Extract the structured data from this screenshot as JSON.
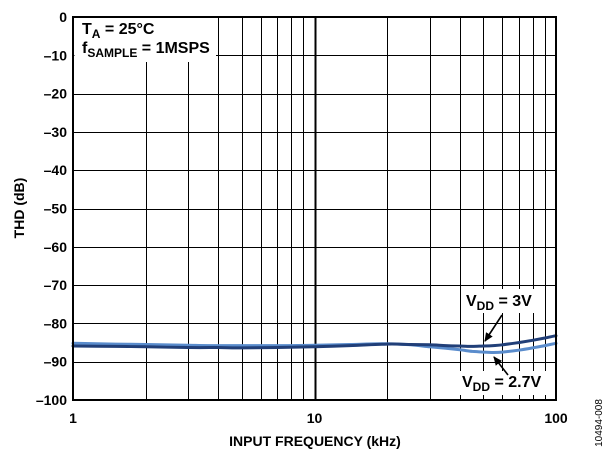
{
  "chart_data": {
    "type": "line",
    "xlabel": "INPUT FREQUENCY (kHz)",
    "ylabel": "THD (dB)",
    "xscale": "log",
    "xlim": [
      1,
      100
    ],
    "ylim": [
      -100,
      0
    ],
    "xticks": [
      1,
      10,
      100
    ],
    "xtick_labels": [
      "1",
      "10",
      "100"
    ],
    "yticks": [
      0,
      -10,
      -20,
      -30,
      -40,
      -50,
      -60,
      -70,
      -80,
      -90,
      -100
    ],
    "ytick_labels": [
      "0",
      "–10",
      "–20",
      "–30",
      "–40",
      "–50",
      "–60",
      "–70",
      "–80",
      "–90",
      "–100"
    ],
    "grid": true,
    "annotations": [
      {
        "symbol": "T",
        "subscript": "A",
        "text": " = 25°C"
      },
      {
        "symbol": "f",
        "subscript": "SAMPLE",
        "text": " = 1MSPS"
      }
    ],
    "series": [
      {
        "label": {
          "symbol": "V",
          "subscript": "DD",
          "text": " = 3V"
        },
        "color": "#213f78",
        "x": [
          1,
          1.5,
          2,
          3,
          4,
          5,
          7,
          10,
          14,
          20,
          25,
          30,
          35,
          40,
          45,
          50,
          55,
          60,
          70,
          80,
          90,
          100
        ],
        "y": [
          -85.9,
          -86.0,
          -86.1,
          -86.3,
          -86.3,
          -86.4,
          -86.3,
          -86.1,
          -85.8,
          -85.4,
          -85.5,
          -85.6,
          -85.8,
          -85.9,
          -86.0,
          -85.9,
          -85.8,
          -85.6,
          -85.0,
          -84.4,
          -83.8,
          -83.2
        ]
      },
      {
        "label": {
          "symbol": "V",
          "subscript": "DD",
          "text": " = 2.7V"
        },
        "color": "#5a8ccc",
        "x": [
          1,
          1.5,
          2,
          3,
          4,
          5,
          7,
          10,
          14,
          20,
          25,
          30,
          35,
          40,
          45,
          50,
          55,
          60,
          70,
          80,
          90,
          100
        ],
        "y": [
          -85.2,
          -85.4,
          -85.5,
          -85.7,
          -85.8,
          -85.8,
          -85.8,
          -85.7,
          -85.5,
          -85.3,
          -85.6,
          -86.1,
          -86.5,
          -86.9,
          -87.3,
          -87.5,
          -87.6,
          -87.5,
          -87.0,
          -86.4,
          -85.8,
          -85.2
        ]
      }
    ]
  },
  "figure_id": "10494-008"
}
